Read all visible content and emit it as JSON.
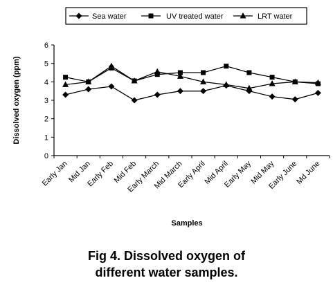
{
  "chart_data": {
    "type": "line",
    "title": "",
    "xlabel": "Samples",
    "ylabel": "Dissolved oxygen (ppm)",
    "ylim": [
      0,
      6
    ],
    "yticks": [
      "0",
      "1",
      "2",
      "3",
      "4",
      "5",
      "6"
    ],
    "grid": false,
    "legend_position": "top",
    "categories": [
      "Early Jan",
      "Mid Jan",
      "Early Feb",
      "Mid Feb",
      "Early March",
      "Mid March",
      "Early April",
      "Mid April",
      "Early May",
      "Mid May",
      "Early June",
      "Md June"
    ],
    "series": [
      {
        "name": "Sea water",
        "marker": "diamond",
        "values": [
          3.3,
          3.6,
          3.75,
          3.0,
          3.3,
          3.5,
          3.5,
          3.8,
          3.5,
          3.2,
          3.05,
          3.4
        ]
      },
      {
        "name": "UV treated water",
        "marker": "square",
        "values": [
          4.25,
          4.0,
          4.75,
          4.05,
          4.4,
          4.5,
          4.5,
          4.85,
          4.5,
          4.25,
          4.0,
          3.9
        ]
      },
      {
        "name": "LRT water",
        "marker": "triangle",
        "values": [
          3.85,
          4.0,
          4.85,
          4.05,
          4.55,
          4.3,
          4.0,
          3.85,
          3.65,
          3.9,
          4.0,
          3.95
        ]
      }
    ]
  },
  "caption": {
    "line1": "Fig 4. Dissolved oxygen of",
    "line2": "different water samples."
  },
  "colors": {
    "line": "#000000",
    "background": "#ffffff"
  }
}
